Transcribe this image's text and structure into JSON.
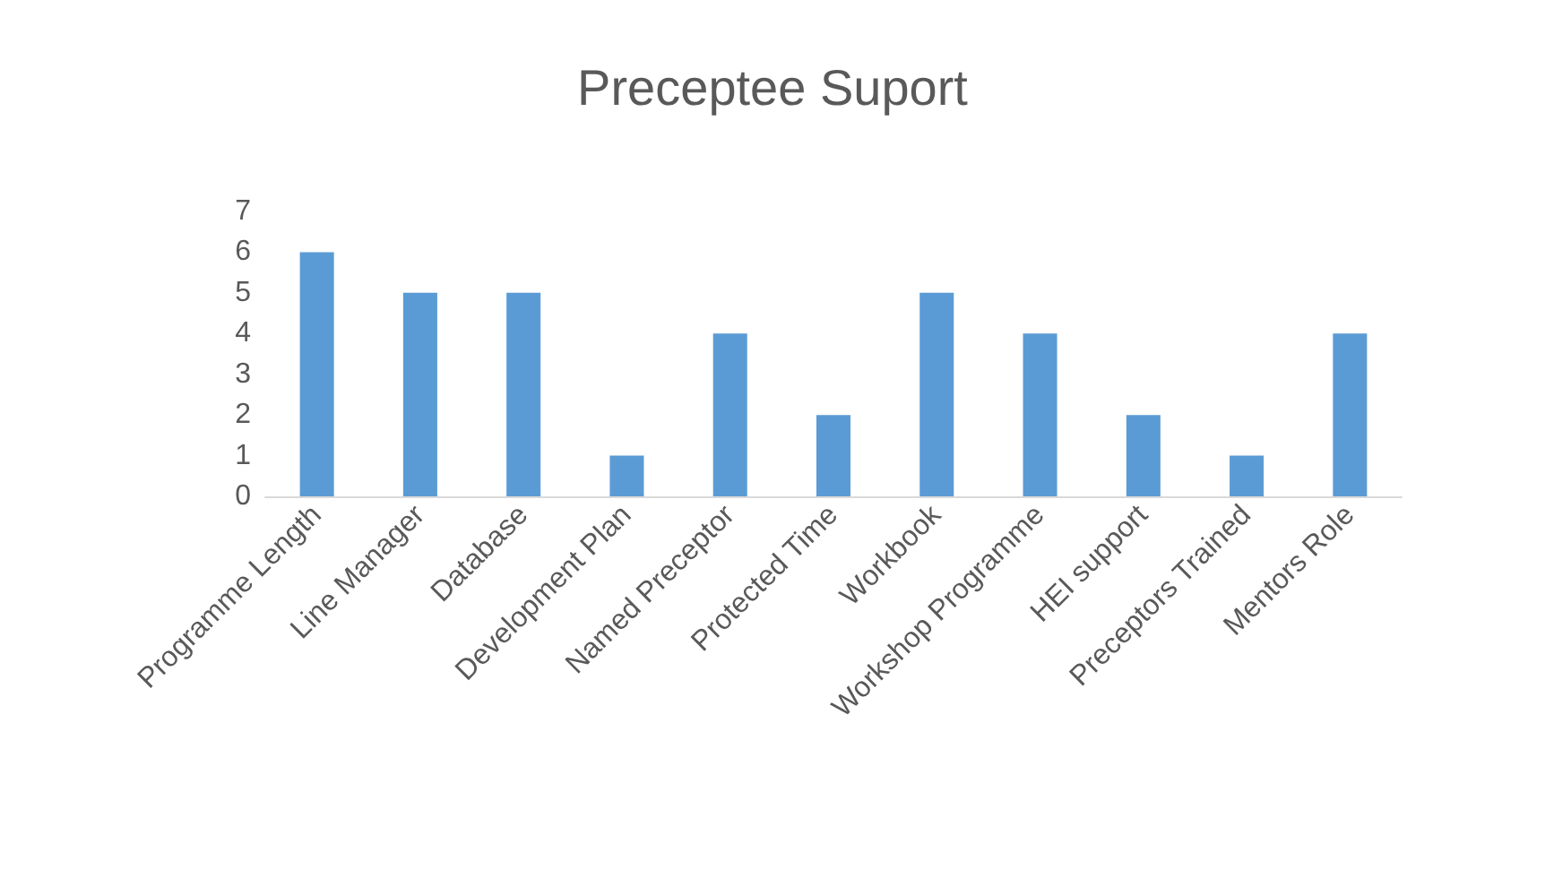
{
  "chart_data": {
    "type": "bar",
    "title": "Preceptee Suport",
    "categories": [
      "Programme Length",
      "Line Manager",
      "Database",
      "Development Plan",
      "Named Preceptor",
      "Protected Time",
      "Workbook",
      "Workshop Programme",
      "HEI support",
      "Preceptors Trained",
      "Mentors Role"
    ],
    "values": [
      6,
      5,
      5,
      1,
      4,
      2,
      5,
      4,
      2,
      1,
      4
    ],
    "color": "#5b9bd5",
    "ylim": [
      0,
      7
    ],
    "yticks": [
      0,
      1,
      2,
      3,
      4,
      5,
      6,
      7
    ]
  }
}
